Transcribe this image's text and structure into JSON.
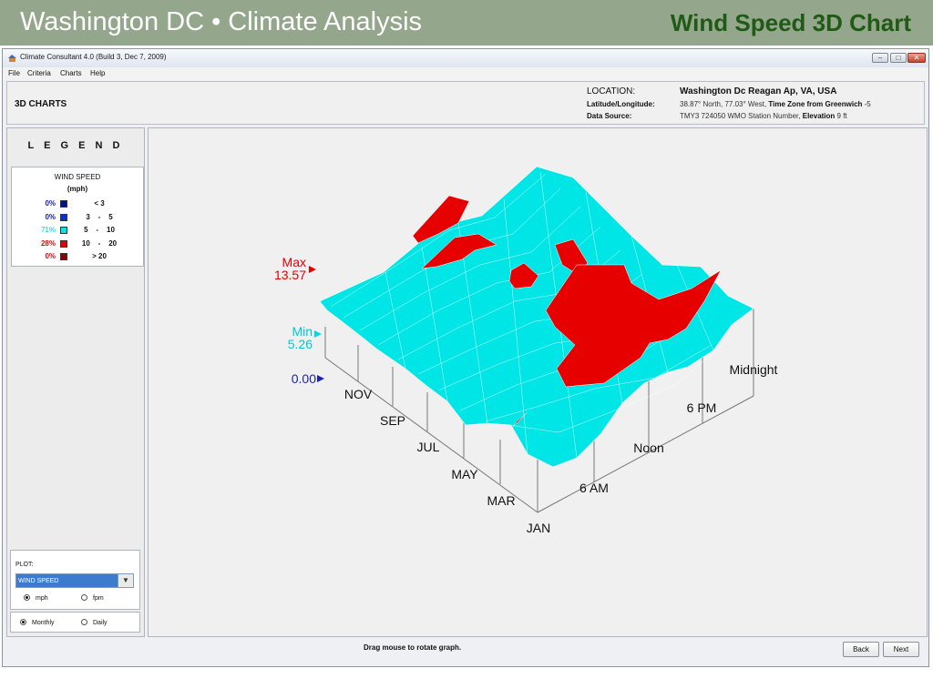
{
  "slide": {
    "title_left": "Washington DC • Climate Analysis",
    "title_right": "Wind Speed 3D Chart"
  },
  "window": {
    "title": "Climate Consultant 4.0 (Build 3, Dec 7, 2009)",
    "controls": {
      "minimize": "–",
      "maximize": "□",
      "close": "✕"
    }
  },
  "menu": {
    "items": [
      "File",
      "Criteria",
      "Charts",
      "Help"
    ]
  },
  "header": {
    "section": "3D CHARTS",
    "location_label": "LOCATION:",
    "location_value": "Washington Dc Reagan Ap, VA, USA",
    "latlon_label": "Latitude/Longitude:",
    "latlon_value": "38.87° North, 77.03° West, ",
    "timezone_label": "Time Zone from Greenwich",
    "timezone_value": " -5",
    "source_label": "Data Source:",
    "source_value": "TMY3     724050 WMO Station Number, ",
    "elevation_label": "Elevation",
    "elevation_value": " 9 ft"
  },
  "legend": {
    "title": "L E G E N D",
    "variable": "WIND SPEED",
    "unit": "(mph)",
    "rows": [
      {
        "pct": "0%",
        "range": "< 3",
        "color": "#00148c"
      },
      {
        "pct": "0%",
        "range": "3    -    5",
        "color": "#0a2fd6"
      },
      {
        "pct": "71%",
        "range": "5    -    10",
        "color": "#00e5e5"
      },
      {
        "pct": "28%",
        "range": "10    -    20",
        "color": "#e60000"
      },
      {
        "pct": "0%",
        "range": "> 20",
        "color": "#8c0000"
      }
    ]
  },
  "plot": {
    "label": "PLOT:",
    "selected": "WIND SPEED",
    "unit_options": [
      "mph",
      "fpm"
    ],
    "unit_selected": "mph",
    "period_options": [
      "Monthly",
      "Daily"
    ],
    "period_selected": "Monthly"
  },
  "chart": {
    "max_label": "Max",
    "max_value": "13.57",
    "min_label": "Min",
    "min_value": "5.26",
    "zero_value": "0.00",
    "month_ticks": [
      "JAN",
      "MAR",
      "MAY",
      "JUL",
      "SEP",
      "NOV"
    ],
    "hour_ticks": [
      "6 AM",
      "Noon",
      "6 PM",
      "Midnight"
    ],
    "colors": {
      "surface_low": "#00e5e5",
      "surface_high": "#e60000",
      "max_marker": "#e60000",
      "min_marker": "#00d9e6",
      "zero_marker": "#1a23b0"
    }
  },
  "footer": {
    "hint": "Drag mouse to rotate graph.",
    "back": "Back",
    "next": "Next"
  }
}
